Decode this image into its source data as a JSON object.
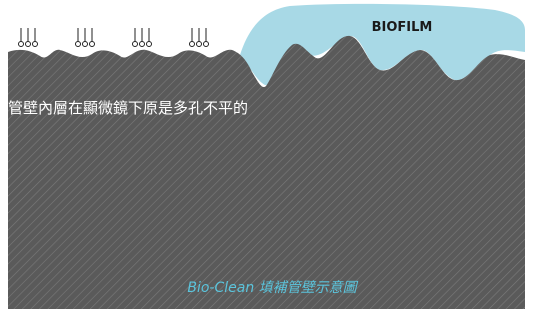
{
  "biofilm_label": "BIOFILM",
  "description": "管壁內層在顯微鏡下原是多孔不平的",
  "caption": "Bio-Clean 填補管壁示意圖"
}
